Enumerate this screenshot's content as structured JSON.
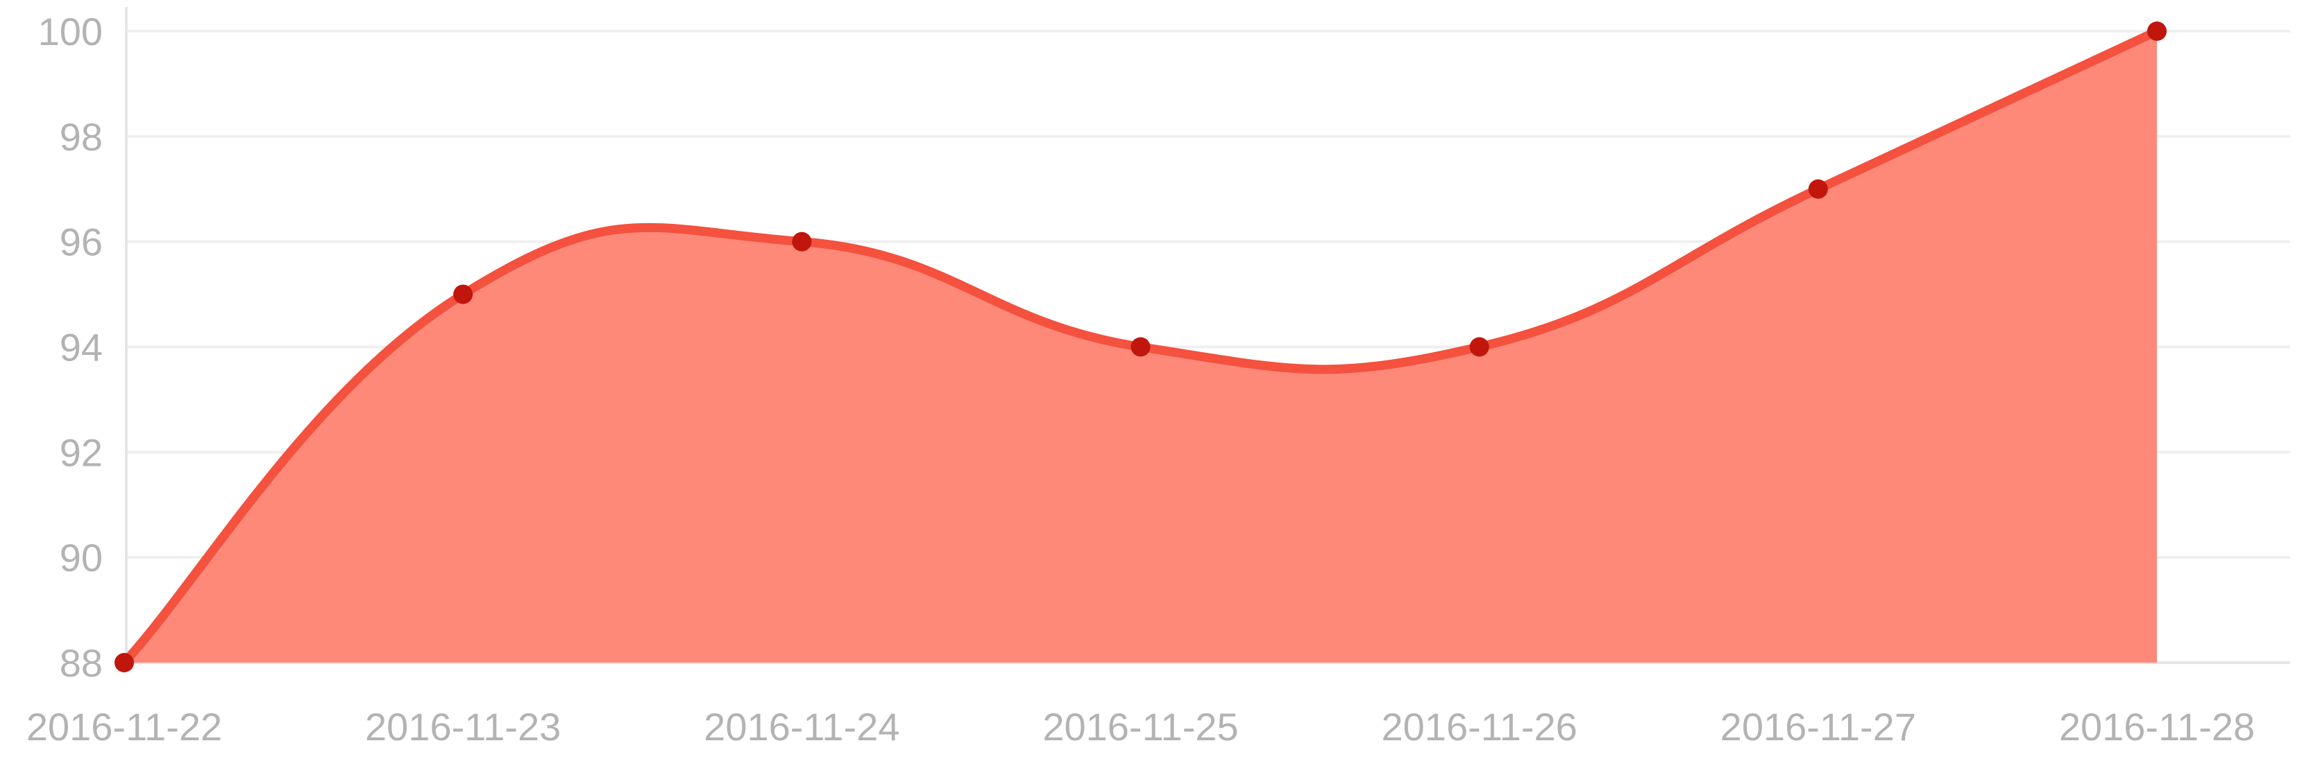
{
  "chart_data": {
    "type": "area",
    "title": "",
    "xlabel": "",
    "ylabel": "",
    "x": [
      "2016-11-22",
      "2016-11-23",
      "2016-11-24",
      "2016-11-25",
      "2016-11-26",
      "2016-11-27",
      "2016-11-28"
    ],
    "series": [
      {
        "values": [
          88,
          95,
          96,
          94,
          94,
          97,
          100
        ],
        "line_color": "#f4513e",
        "fill_color": "#ff8979",
        "marker_color": "#c0160c"
      }
    ],
    "ylim": [
      88,
      100
    ],
    "yticks": [
      88,
      90,
      92,
      94,
      96,
      98,
      100
    ],
    "grid": true,
    "smooth": true,
    "legend": "none"
  }
}
